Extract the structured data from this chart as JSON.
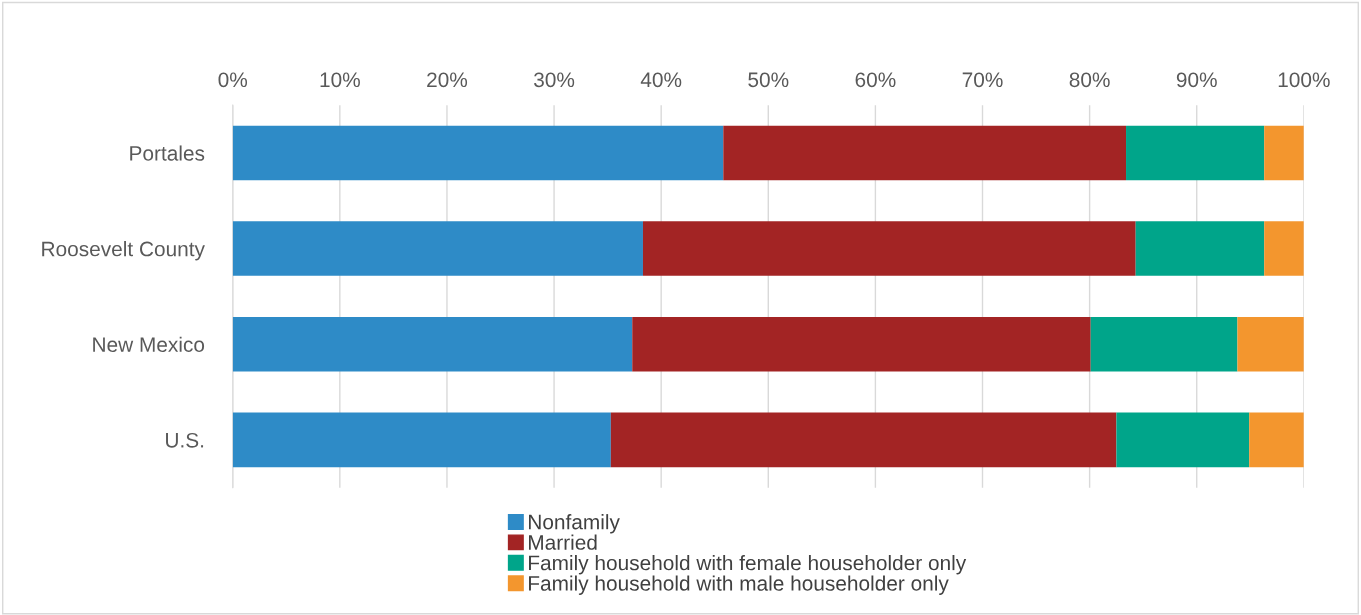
{
  "chart_data": {
    "type": "bar",
    "orientation": "horizontal",
    "stacked": true,
    "categories": [
      "Portales",
      "Roosevelt County",
      "New Mexico",
      "U.S."
    ],
    "series": [
      {
        "name": "Nonfamily",
        "color": "#2e8bc7",
        "values": [
          45.8,
          38.3,
          37.3,
          35.3
        ]
      },
      {
        "name": "Married",
        "color": "#a32424",
        "values": [
          37.6,
          46.0,
          42.8,
          47.2
        ]
      },
      {
        "name": "Family household with female householder only",
        "color": "#00a58a",
        "values": [
          12.9,
          12.0,
          13.7,
          12.4
        ]
      },
      {
        "name": "Family household with male householder only",
        "color": "#f3962e",
        "values": [
          3.7,
          3.7,
          6.2,
          5.1
        ]
      }
    ],
    "xlim": [
      0,
      100
    ],
    "xticks": [
      {
        "value": 0,
        "label": "0%"
      },
      {
        "value": 10,
        "label": "10%"
      },
      {
        "value": 20,
        "label": "20%"
      },
      {
        "value": 30,
        "label": "30%"
      },
      {
        "value": 40,
        "label": "40%"
      },
      {
        "value": 50,
        "label": "50%"
      },
      {
        "value": 60,
        "label": "60%"
      },
      {
        "value": 70,
        "label": "70%"
      },
      {
        "value": 80,
        "label": "80%"
      },
      {
        "value": 90,
        "label": "90%"
      },
      {
        "value": 100,
        "label": "100%"
      }
    ],
    "grid": "x",
    "legend": "bottom"
  }
}
